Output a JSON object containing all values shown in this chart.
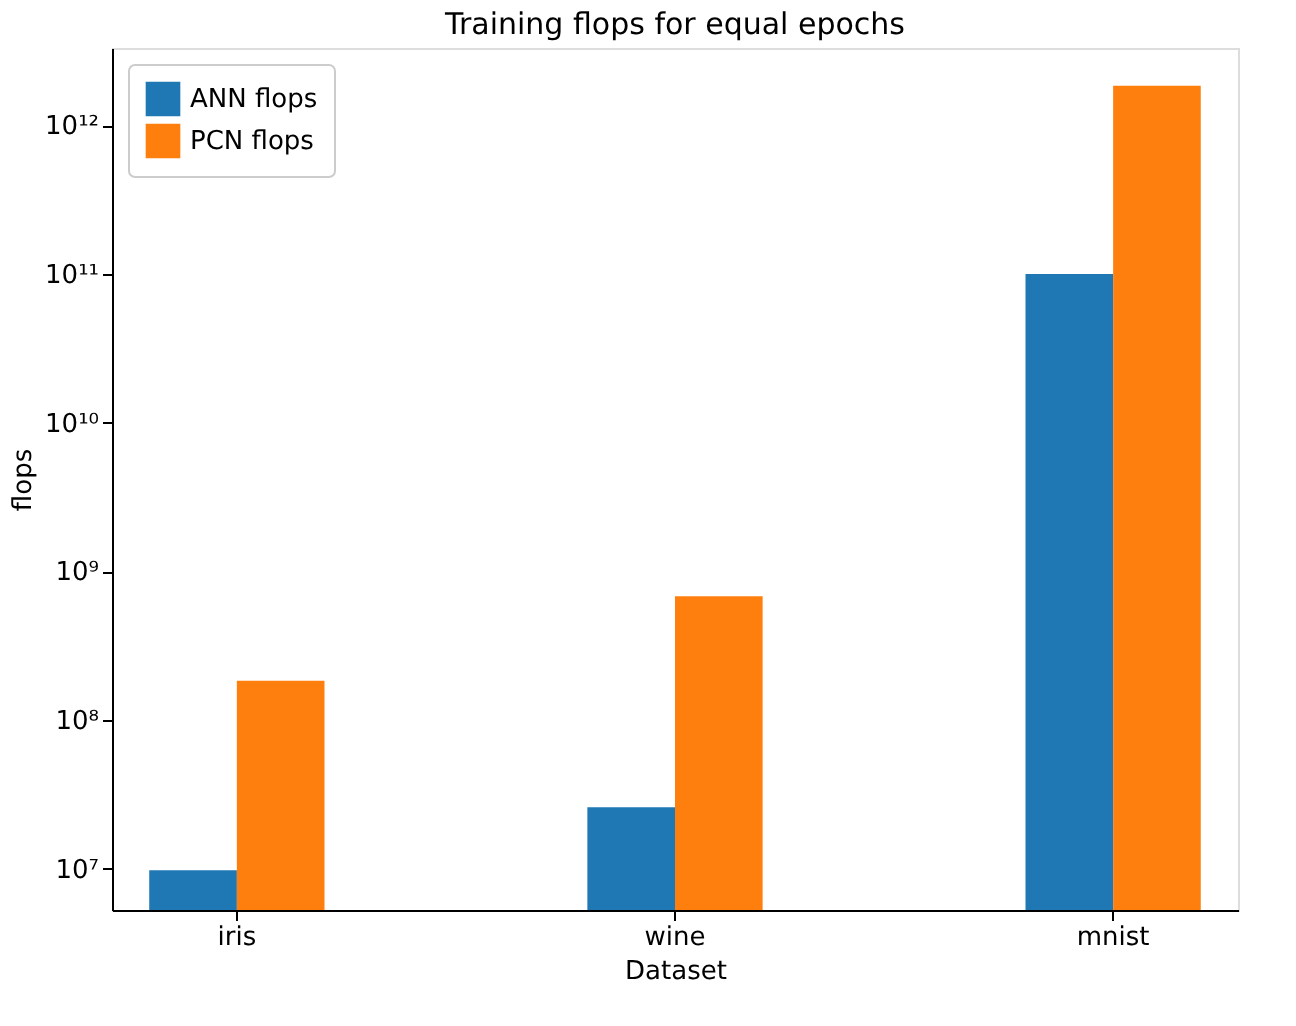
{
  "chart_data": {
    "type": "bar",
    "title": "Training flops for equal epochs",
    "xlabel": "Dataset",
    "ylabel": "flops",
    "categories": [
      "iris",
      "wine",
      "mnist"
    ],
    "series": [
      {
        "name": "ANN flops",
        "color": "#1f77b4",
        "values": [
          9800000,
          26000000,
          100000000000
        ]
      },
      {
        "name": "PCN flops",
        "color": "#ff7f0e",
        "values": [
          184000000,
          680000000,
          1840000000000
        ]
      }
    ],
    "log": "y",
    "ylim": [
      5300000,
      3300000000000
    ],
    "yticks": [
      {
        "value": 10000000,
        "label": "10⁷"
      },
      {
        "value": 100000000,
        "label": "10⁸"
      },
      {
        "value": 1000000000,
        "label": "10⁹"
      },
      {
        "value": 10000000000,
        "label": "10¹⁰"
      },
      {
        "value": 100000000000,
        "label": "10¹¹"
      },
      {
        "value": 1000000000000,
        "label": "10¹²"
      }
    ],
    "grid": false,
    "legend": "top left"
  }
}
